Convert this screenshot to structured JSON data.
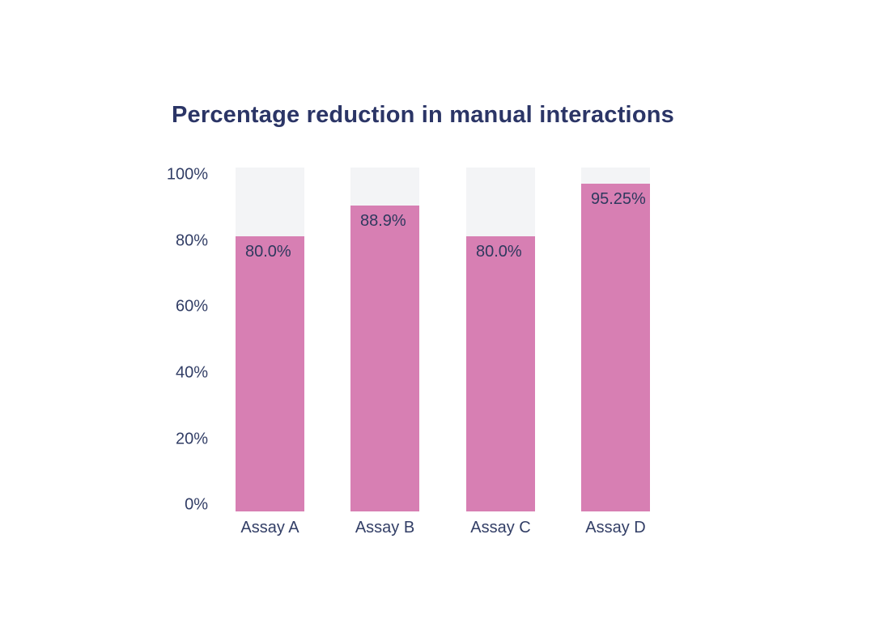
{
  "chart_data": {
    "type": "bar",
    "title": "Percentage reduction in manual interactions",
    "categories": [
      "Assay A",
      "Assay B",
      "Assay C",
      "Assay D"
    ],
    "values": [
      80.0,
      88.9,
      80.0,
      95.25
    ],
    "value_labels": [
      "80.0%",
      "88.9%",
      "80.0%",
      "95.25%"
    ],
    "y_ticks": [
      "100%",
      "80%",
      "60%",
      "40%",
      "20%",
      "0%"
    ],
    "ylim": [
      0,
      100
    ],
    "xlabel": "",
    "ylabel": "",
    "grid": false,
    "legend": "none",
    "colors": {
      "bar_fill": "#d77fb3",
      "bar_track": "#f3f4f6",
      "title_text": "#2b3566",
      "axis_text": "#323e66",
      "value_text": "#2e395e",
      "background": "#ffffff"
    }
  }
}
